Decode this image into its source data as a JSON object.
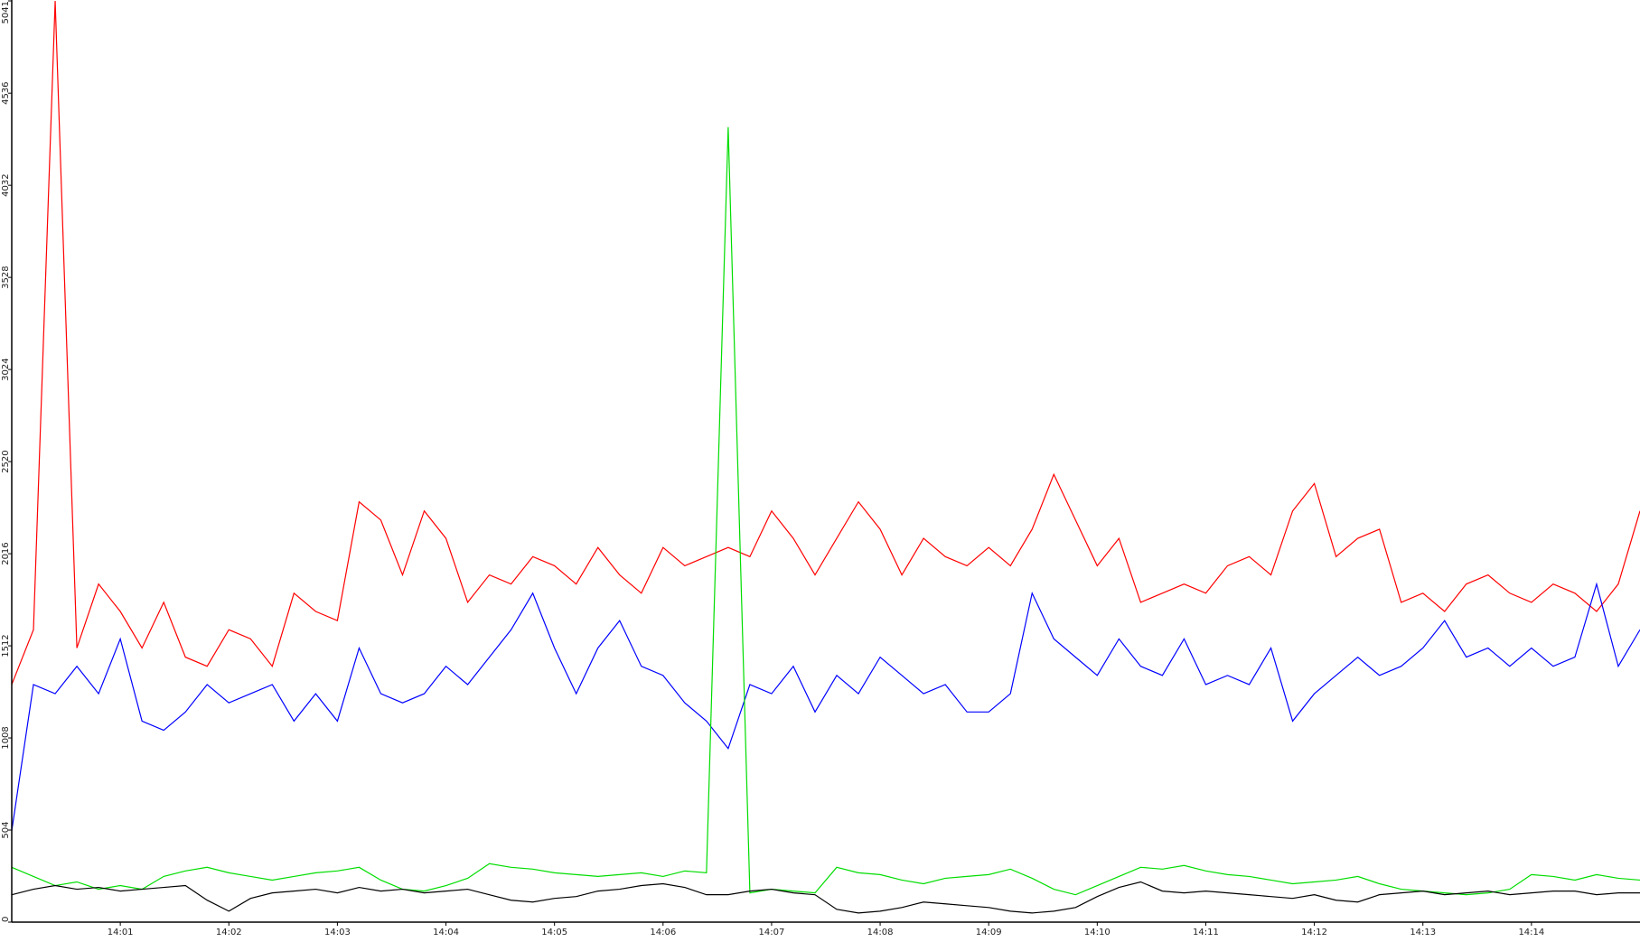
{
  "chart_data": {
    "type": "line",
    "x": [
      0,
      0.2,
      0.4,
      0.6,
      0.8,
      1,
      1.2,
      1.4,
      1.6,
      1.8,
      2,
      2.2,
      2.4,
      2.6,
      2.8,
      3,
      3.2,
      3.4,
      3.6,
      3.8,
      4,
      4.2,
      4.4,
      4.6,
      4.8,
      5,
      5.2,
      5.4,
      5.6,
      5.8,
      6,
      6.2,
      6.4,
      6.6,
      6.8,
      7,
      7.2,
      7.4,
      7.6,
      7.8,
      8,
      8.2,
      8.4,
      8.6,
      8.8,
      9,
      9.2,
      9.4,
      9.6,
      9.8,
      10,
      10.2,
      10.4,
      10.6,
      10.8,
      11,
      11.2,
      11.4,
      11.6,
      11.8,
      12,
      12.2,
      12.4,
      12.6,
      12.8,
      13,
      13.2,
      13.4,
      13.6,
      13.8,
      14,
      14.2,
      14.4,
      14.6,
      14.8,
      15
    ],
    "xlim": [
      0,
      15
    ],
    "xticks": [
      {
        "value": 1,
        "label": "14:01"
      },
      {
        "value": 2,
        "label": "14:02"
      },
      {
        "value": 3,
        "label": "14:03"
      },
      {
        "value": 4,
        "label": "14:04"
      },
      {
        "value": 5,
        "label": "14:05"
      },
      {
        "value": 6,
        "label": "14:06"
      },
      {
        "value": 7,
        "label": "14:07"
      },
      {
        "value": 8,
        "label": "14:08"
      },
      {
        "value": 9,
        "label": "14:09"
      },
      {
        "value": 10,
        "label": "14:10"
      },
      {
        "value": 11,
        "label": "14:11"
      },
      {
        "value": 12,
        "label": "14:12"
      },
      {
        "value": 13,
        "label": "14:13"
      },
      {
        "value": 14,
        "label": "14:14"
      }
    ],
    "ylim": [
      0,
      5041
    ],
    "yticks": [
      0,
      504,
      1008,
      1512,
      2016,
      2520,
      3024,
      3528,
      4032,
      4536,
      5041
    ],
    "grid": false,
    "series": [
      {
        "color": "#ff0000",
        "values": [
          1300,
          1600,
          5041,
          1500,
          1850,
          1700,
          1500,
          1750,
          1450,
          1400,
          1600,
          1550,
          1400,
          1800,
          1700,
          1650,
          2300,
          2200,
          1900,
          2250,
          2100,
          1750,
          1900,
          1850,
          2000,
          1950,
          1850,
          2050,
          1900,
          1800,
          2050,
          1950,
          2000,
          2050,
          2000,
          2250,
          2100,
          1900,
          2100,
          2300,
          2150,
          1900,
          2100,
          2000,
          1950,
          2050,
          1950,
          2150,
          2450,
          2200,
          1950,
          2100,
          1750,
          1800,
          1850,
          1800,
          1950,
          2000,
          1900,
          2250,
          2400,
          2000,
          2100,
          2150,
          1750,
          1800,
          1700,
          1850,
          1900,
          1800,
          1750,
          1850,
          1800,
          1700,
          1850,
          2250
        ]
      },
      {
        "color": "#0000ff",
        "values": [
          500,
          1300,
          1250,
          1400,
          1250,
          1550,
          1100,
          1050,
          1150,
          1300,
          1200,
          1250,
          1300,
          1100,
          1250,
          1100,
          1500,
          1250,
          1200,
          1250,
          1400,
          1300,
          1450,
          1600,
          1800,
          1500,
          1250,
          1500,
          1650,
          1400,
          1350,
          1200,
          1100,
          950,
          1300,
          1250,
          1400,
          1150,
          1350,
          1250,
          1450,
          1350,
          1250,
          1300,
          1150,
          1150,
          1250,
          1800,
          1550,
          1450,
          1350,
          1550,
          1400,
          1350,
          1550,
          1300,
          1350,
          1300,
          1500,
          1100,
          1250,
          1350,
          1450,
          1350,
          1400,
          1500,
          1650,
          1450,
          1500,
          1400,
          1500,
          1400,
          1450,
          1850,
          1400,
          1600
        ]
      },
      {
        "color": "#00dd00",
        "values": [
          300,
          250,
          200,
          220,
          180,
          200,
          180,
          250,
          280,
          300,
          270,
          250,
          230,
          250,
          270,
          280,
          300,
          230,
          180,
          170,
          200,
          240,
          320,
          300,
          290,
          270,
          260,
          250,
          260,
          270,
          250,
          280,
          270,
          4350,
          160,
          180,
          170,
          160,
          300,
          270,
          260,
          230,
          210,
          240,
          250,
          260,
          290,
          240,
          180,
          150,
          200,
          250,
          300,
          290,
          310,
          280,
          260,
          250,
          230,
          210,
          220,
          230,
          250,
          210,
          180,
          170,
          160,
          150,
          160,
          180,
          260,
          250,
          230,
          260,
          240,
          230
        ]
      },
      {
        "color": "#000000",
        "values": [
          150,
          180,
          200,
          180,
          190,
          170,
          180,
          190,
          200,
          120,
          60,
          130,
          160,
          170,
          180,
          160,
          190,
          170,
          180,
          160,
          170,
          180,
          150,
          120,
          110,
          130,
          140,
          170,
          180,
          200,
          210,
          190,
          150,
          150,
          170,
          180,
          160,
          150,
          70,
          50,
          60,
          80,
          110,
          100,
          90,
          80,
          60,
          50,
          60,
          80,
          140,
          190,
          220,
          170,
          160,
          170,
          160,
          150,
          140,
          130,
          150,
          120,
          110,
          150,
          160,
          170,
          150,
          160,
          170,
          150,
          160,
          170,
          170,
          150,
          160,
          160
        ]
      }
    ]
  }
}
